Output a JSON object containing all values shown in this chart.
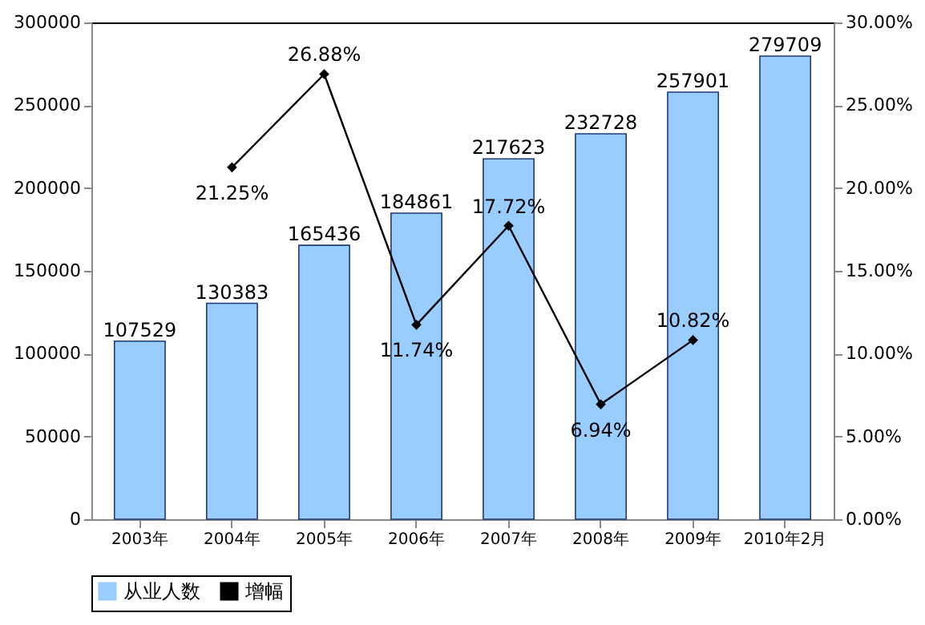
{
  "chart_data": {
    "type": "bar",
    "categories": [
      "2003年",
      "2004年",
      "2005年",
      "2006年",
      "2007年",
      "2008年",
      "2009年",
      "2010年2月"
    ],
    "series": [
      {
        "name": "从业人数",
        "color": "#99ccff",
        "values": [
          107529,
          130383,
          165436,
          184861,
          217623,
          232728,
          257901,
          279709
        ],
        "value_labels": [
          "107529",
          "130383",
          "165436",
          "184861",
          "217623",
          "232728",
          "257901",
          "279709"
        ]
      },
      {
        "name": "增幅",
        "type": "line",
        "axis": "y2",
        "color": "#000000",
        "values": [
          null,
          21.25,
          26.88,
          11.74,
          17.72,
          6.94,
          10.82,
          null
        ],
        "value_labels": [
          null,
          "21.25%",
          "26.88%",
          "11.74%",
          "17.72%",
          "6.94%",
          "10.82%",
          null
        ]
      }
    ],
    "ylim": [
      0,
      300000
    ],
    "yticks": [
      0,
      50000,
      100000,
      150000,
      200000,
      250000,
      300000
    ],
    "y2lim": [
      0,
      30
    ],
    "y2ticks": [
      {
        "value": 0,
        "label": "0.00%"
      },
      {
        "value": 5,
        "label": "5.00%"
      },
      {
        "value": 10,
        "label": "10.00%"
      },
      {
        "value": 15,
        "label": "15.00%"
      },
      {
        "value": 20,
        "label": "20.00%"
      },
      {
        "value": 25,
        "label": "25.00%"
      },
      {
        "value": 30,
        "label": "30.00%"
      }
    ],
    "marker": "diamond",
    "line_style": "solid",
    "grid": false,
    "legend": "bottom"
  }
}
